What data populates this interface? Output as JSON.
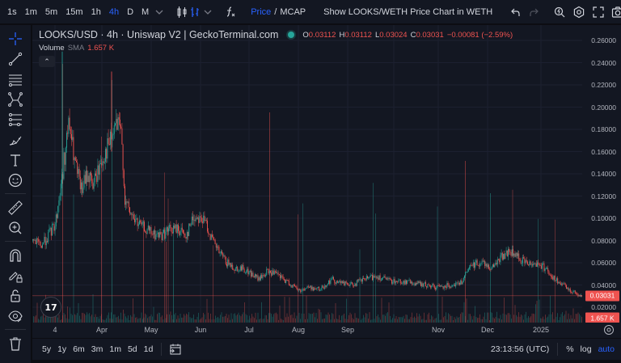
{
  "toolbar": {
    "intervals": [
      "1s",
      "1m",
      "5m",
      "15m",
      "1h",
      "4h",
      "D",
      "M"
    ],
    "active_interval": "4h",
    "price_label": "Price",
    "separator": "/",
    "mcap_label": "MCAP",
    "weth_link": "Show LOOKS/WETH Price Chart in WETH"
  },
  "legend": {
    "title": "LOOKS/USD · 4h · Uniswap V2 | GeckoTerminal.com",
    "status_color": "#26a69a",
    "open_label": "O",
    "open": "0.03112",
    "high_label": "H",
    "high": "0.03112",
    "low_label": "L",
    "low": "0.03024",
    "close_label": "C",
    "close": "0.03031",
    "change": "−0.00081 (−2.59%)"
  },
  "volume": {
    "name": "Volume",
    "sma": "SMA",
    "value": "1.657 K"
  },
  "collapse_glyph": "⌃",
  "price_scale": {
    "ticks": [
      "0.26000",
      "0.24000",
      "0.22000",
      "0.20000",
      "0.18000",
      "0.16000",
      "0.14000",
      "0.12000",
      "0.10000",
      "0.08000",
      "0.06000",
      "0.04000",
      "0.02000"
    ],
    "current_price": "0.03031",
    "current_volume": "1.657 K"
  },
  "time_axis": {
    "ticks": [
      "4",
      "Apr",
      "May",
      "Jun",
      "Jul",
      "Aug",
      "Sep",
      "Nov",
      "Dec",
      "2025"
    ]
  },
  "bottom": {
    "ranges": [
      "5y",
      "1y",
      "6m",
      "3m",
      "1m",
      "5d",
      "1d"
    ],
    "clock": "23:13:56 (UTC)",
    "percent": "%",
    "log": "log",
    "auto": "auto"
  },
  "logo_text": "17",
  "colors": {
    "up": "#26a69a",
    "down": "#ef5350",
    "accent": "#2962ff",
    "background": "#131722"
  }
}
